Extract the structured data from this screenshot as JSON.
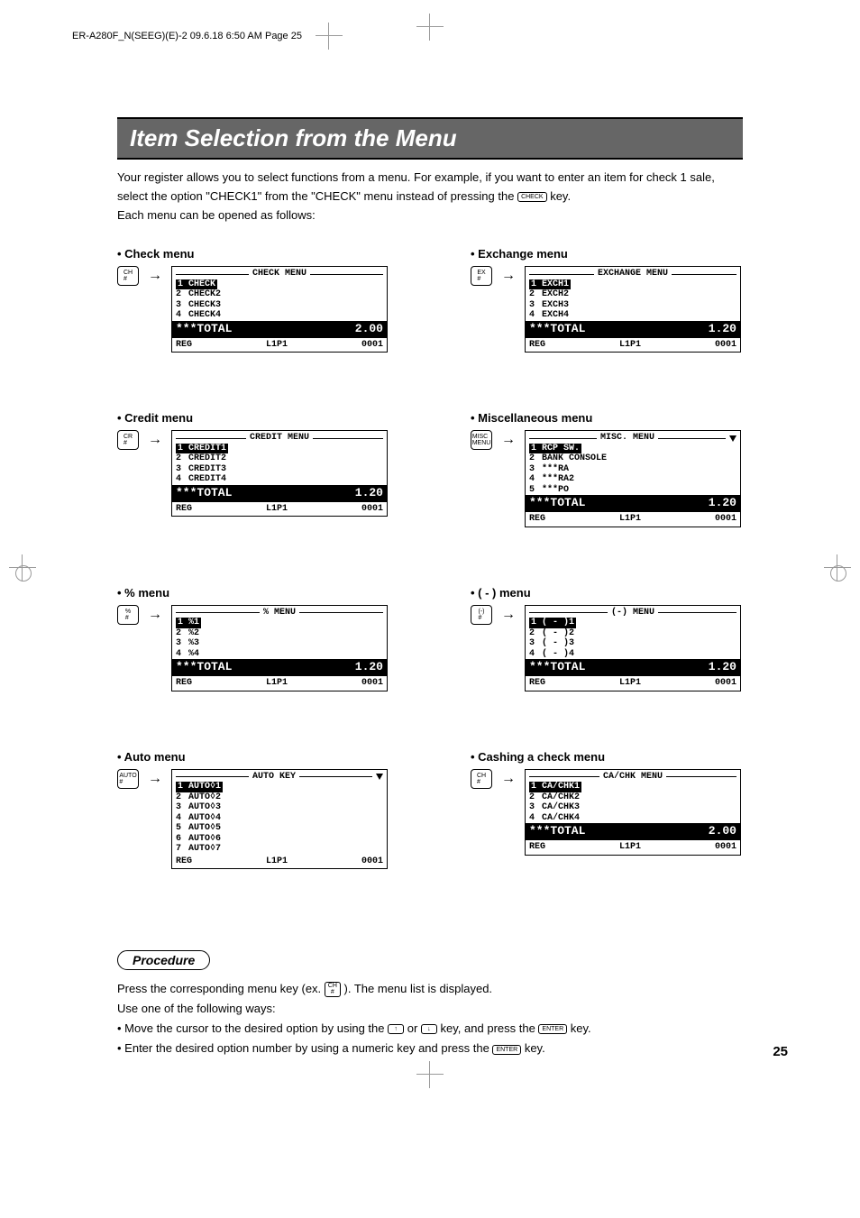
{
  "header": "ER-A280F_N(SEEG)(E)-2  09.6.18  6:50 AM  Page 25",
  "title": "Item Selection from the Menu",
  "intro_part1": "Your register allows you to select functions from a menu. For example, if you want to enter an item for check 1 sale, select the option \"CHECK1\" from the \"CHECK\" menu instead of pressing the ",
  "intro_key": "CHECK",
  "intro_part2": " key.",
  "intro_line2": "Each menu can be opened as follows:",
  "menus": {
    "check": {
      "label": "• Check menu",
      "key": "CH\n#",
      "title": "CHECK MENU",
      "items": [
        "CHECK",
        "CHECK2",
        "CHECK3",
        "CHECK4"
      ],
      "total_label": "***TOTAL",
      "total_value": "2.00",
      "footer": [
        "REG",
        "L1P1",
        "0001"
      ]
    },
    "exchange": {
      "label": "• Exchange menu",
      "key": "EX\n#",
      "title": "EXCHANGE MENU",
      "items": [
        "EXCH1",
        "EXCH2",
        "EXCH3",
        "EXCH4"
      ],
      "total_label": "***TOTAL",
      "total_value": "1.20",
      "footer": [
        "REG",
        "L1P1",
        "0001"
      ]
    },
    "credit": {
      "label": "• Credit menu",
      "key": "CR\n#",
      "title": "CREDIT MENU",
      "items": [
        "CREDIT1",
        "CREDIT2",
        "CREDIT3",
        "CREDIT4"
      ],
      "total_label": "***TOTAL",
      "total_value": "1.20",
      "footer": [
        "REG",
        "L1P1",
        "0001"
      ]
    },
    "misc": {
      "label": "• Miscellaneous menu",
      "key": "MISC\nMENU",
      "title": "MISC. MENU",
      "items": [
        "RCP SW.",
        "BANK CONSOLE",
        "***RA",
        "***RA2",
        "***PO"
      ],
      "total_label": "***TOTAL",
      "total_value": "1.20",
      "footer": [
        "REG",
        "L1P1",
        "0001"
      ],
      "has_tri": true
    },
    "percent": {
      "label": "• % menu",
      "key": "%\n#",
      "title": "% MENU",
      "items": [
        "%1",
        "%2",
        "%3",
        "%4"
      ],
      "total_label": "***TOTAL",
      "total_value": "1.20",
      "footer": [
        "REG",
        "L1P1",
        "0001"
      ]
    },
    "minus": {
      "label": "• ( - ) menu",
      "key": "(-)\n#",
      "title": "(-) MENU",
      "items": [
        "( - )1",
        "( - )2",
        "( - )3",
        "( - )4"
      ],
      "total_label": "***TOTAL",
      "total_value": "1.20",
      "footer": [
        "REG",
        "L1P1",
        "0001"
      ]
    },
    "auto": {
      "label": "• Auto menu",
      "key": "AUTO\n#",
      "title": "AUTO KEY",
      "items": [
        "AUTO◊1",
        "AUTO◊2",
        "AUTO◊3",
        "AUTO◊4",
        "AUTO◊5",
        "AUTO◊6",
        "AUTO◊7"
      ],
      "footer": [
        "REG",
        "L1P1",
        "0001"
      ],
      "has_tri": true,
      "no_total": true
    },
    "cashing": {
      "label": "• Cashing a check menu",
      "key": "CH\n#",
      "title": "CA/CHK MENU",
      "items": [
        "CA/CHK1",
        "CA/CHK2",
        "CA/CHK3",
        "CA/CHK4"
      ],
      "total_label": "***TOTAL",
      "total_value": "2.00",
      "footer": [
        "REG",
        "L1P1",
        "0001"
      ]
    }
  },
  "procedure": {
    "heading": "Procedure",
    "line1a": "Press the corresponding menu key (ex. ",
    "key1": "CH\n#",
    "line1b": " ). The menu list is displayed.",
    "line2": "Use one of the following ways:",
    "line3a": "• Move the cursor to the desired option by using the ",
    "key_up": "↑",
    "line3b": " or ",
    "key_down": "↓",
    "line3c": " key, and press the ",
    "key_enter": "ENTER",
    "line3d": " key.",
    "line4a": "• Enter the desired option number by using a numeric key and press the ",
    "line4b": " key."
  },
  "page": "25"
}
